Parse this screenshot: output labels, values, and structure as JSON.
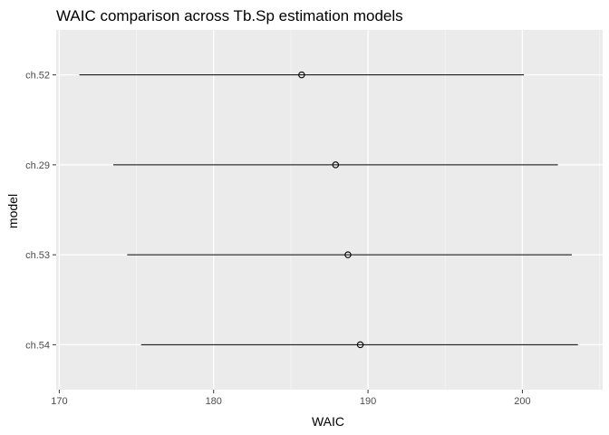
{
  "chart_data": {
    "type": "pointrange",
    "title": "WAIC comparison across Tb.Sp estimation models",
    "xlabel": "WAIC",
    "ylabel": "model",
    "xlim": [
      169.8,
      205.2
    ],
    "xticks": [
      170,
      180,
      190,
      200
    ],
    "categories": [
      "ch.52",
      "ch.29",
      "ch.53",
      "ch.54"
    ],
    "points": [
      {
        "model": "ch.52",
        "waic": 185.7,
        "lower": 171.3,
        "upper": 200.1
      },
      {
        "model": "ch.29",
        "waic": 187.9,
        "lower": 173.5,
        "upper": 202.3
      },
      {
        "model": "ch.53",
        "waic": 188.7,
        "lower": 174.4,
        "upper": 203.2
      },
      {
        "model": "ch.54",
        "waic": 189.5,
        "lower": 175.3,
        "upper": 203.6
      }
    ],
    "grid": true,
    "legend": "none",
    "colors": {
      "panel_background": "#EBEBEB",
      "grid_major": "#FFFFFF",
      "grid_minor": "#F5F5F5",
      "point_stroke": "#000000",
      "interval_line": "#000000",
      "tick_color": "#333333",
      "tick_label_color": "#4D4D4D"
    }
  }
}
